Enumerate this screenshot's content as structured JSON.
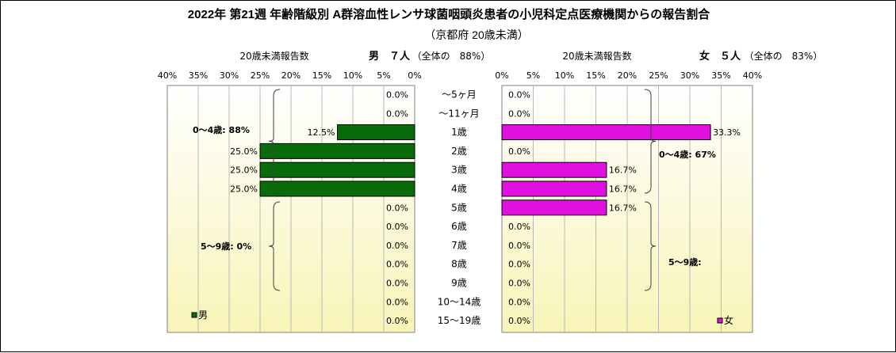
{
  "title": "2022年 第21週 年齢階級別 A群溶血性レンサ球菌咽頭炎患者の小児科定点医療機関からの報告割合",
  "subtitle": "（京都府 20歳未満）",
  "colors": {
    "male": "#0a6b0a",
    "female": "#e010e0",
    "plot_top": "#ffffff",
    "plot_bottom": "#f8f4b8",
    "grid": "#b8b8b8"
  },
  "chart_data": [
    {
      "type": "bar",
      "panel": "male",
      "header_label": "20歳未満報告数",
      "header_count": "男　７人",
      "header_share": "（全体の　88%）",
      "legend": "男",
      "categories": [
        "～5ヶ月",
        "～11ヶ月",
        "1歳",
        "2歳",
        "3歳",
        "4歳",
        "5歳",
        "6歳",
        "7歳",
        "8歳",
        "9歳",
        "10～14歳",
        "15～19歳"
      ],
      "values": [
        0.0,
        0.0,
        12.5,
        25.0,
        25.0,
        25.0,
        0.0,
        0.0,
        0.0,
        0.0,
        0.0,
        0.0,
        0.0
      ],
      "value_labels": [
        "0.0%",
        "0.0%",
        "12.5%",
        "25.0%",
        "25.0%",
        "25.0%",
        "0.0%",
        "0.0%",
        "0.0%",
        "0.0%",
        "0.0%",
        "0.0%",
        "0.0%"
      ],
      "xlim": [
        0,
        40
      ],
      "x_ticks": [
        "40%",
        "35%",
        "30%",
        "25%",
        "20%",
        "15%",
        "10%",
        "5%",
        "0%"
      ],
      "direction": "right-to-left",
      "group_annotations": [
        "0～4歳: 88%",
        "5～9歳: 0%"
      ],
      "grid": true
    },
    {
      "type": "bar",
      "panel": "female",
      "header_label": "20歳未満報告数",
      "header_count": "女　５人",
      "header_share": "（全体の　83%）",
      "legend": "女",
      "categories": [
        "～5ヶ月",
        "～11ヶ月",
        "1歳",
        "2歳",
        "3歳",
        "4歳",
        "5歳",
        "6歳",
        "7歳",
        "8歳",
        "9歳",
        "10～14歳",
        "15～19歳"
      ],
      "values": [
        0.0,
        0.0,
        33.3,
        0.0,
        16.7,
        16.7,
        16.7,
        0.0,
        0.0,
        0.0,
        0.0,
        0.0,
        0.0
      ],
      "value_labels": [
        "0.0%",
        "0.0%",
        "33.3%",
        "0.0%",
        "16.7%",
        "16.7%",
        "16.7%",
        "0.0%",
        "0.0%",
        "0.0%",
        "0.0%",
        "0.0%",
        "0.0%"
      ],
      "xlim": [
        0,
        40
      ],
      "x_ticks": [
        "0%",
        "5%",
        "10%",
        "15%",
        "20%",
        "25%",
        "30%",
        "35%",
        "40%"
      ],
      "direction": "left-to-right",
      "group_annotations": [
        "0～4歳: 67%",
        "5～9歳:"
      ],
      "grid": true
    }
  ]
}
